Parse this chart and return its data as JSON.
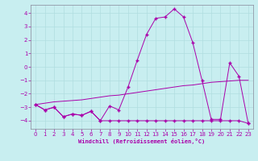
{
  "xlabel": "Windchill (Refroidissement éolien,°C)",
  "background_color": "#c8eef0",
  "grid_color": "#b0dde0",
  "line_color": "#aa00aa",
  "spine_color": "#888899",
  "xlim": [
    -0.5,
    23.5
  ],
  "ylim": [
    -4.6,
    4.6
  ],
  "yticks": [
    -4,
    -3,
    -2,
    -1,
    0,
    1,
    2,
    3,
    4
  ],
  "xticks": [
    0,
    1,
    2,
    3,
    4,
    5,
    6,
    7,
    8,
    9,
    10,
    11,
    12,
    13,
    14,
    15,
    16,
    17,
    18,
    19,
    20,
    21,
    22,
    23
  ],
  "curve1_x": [
    0,
    1,
    2,
    3,
    4,
    5,
    6,
    7,
    8,
    9,
    10,
    11,
    12,
    13,
    14,
    15,
    16,
    17,
    18,
    19,
    20,
    21,
    22,
    23
  ],
  "curve1_y": [
    -2.8,
    -3.2,
    -3.0,
    -3.7,
    -3.5,
    -3.6,
    -3.3,
    -4.0,
    -2.9,
    -3.2,
    -1.5,
    0.5,
    2.4,
    3.6,
    3.7,
    4.3,
    3.7,
    1.8,
    -1.0,
    -3.9,
    -3.9,
    0.3,
    -0.7,
    -4.2
  ],
  "curve2_x": [
    0,
    1,
    2,
    3,
    4,
    5,
    6,
    7,
    8,
    9,
    10,
    11,
    12,
    13,
    14,
    15,
    16,
    17,
    18,
    19,
    20,
    21,
    22,
    23
  ],
  "curve2_y": [
    -2.8,
    -3.2,
    -3.0,
    -3.7,
    -3.5,
    -3.6,
    -3.3,
    -4.0,
    -4.0,
    -4.0,
    -4.0,
    -4.0,
    -4.0,
    -4.0,
    -4.0,
    -4.0,
    -4.0,
    -4.0,
    -4.0,
    -4.0,
    -4.0,
    -4.0,
    -4.0,
    -4.2
  ],
  "curve3_x": [
    0,
    1,
    2,
    3,
    4,
    5,
    6,
    7,
    8,
    9,
    10,
    11,
    12,
    13,
    14,
    15,
    16,
    17,
    18,
    19,
    20,
    21,
    22,
    23
  ],
  "curve3_y": [
    -2.8,
    -2.7,
    -2.6,
    -2.55,
    -2.5,
    -2.45,
    -2.35,
    -2.25,
    -2.15,
    -2.1,
    -2.0,
    -1.9,
    -1.8,
    -1.7,
    -1.6,
    -1.5,
    -1.4,
    -1.35,
    -1.25,
    -1.15,
    -1.1,
    -1.05,
    -1.0,
    -1.0
  ],
  "marker": "+"
}
